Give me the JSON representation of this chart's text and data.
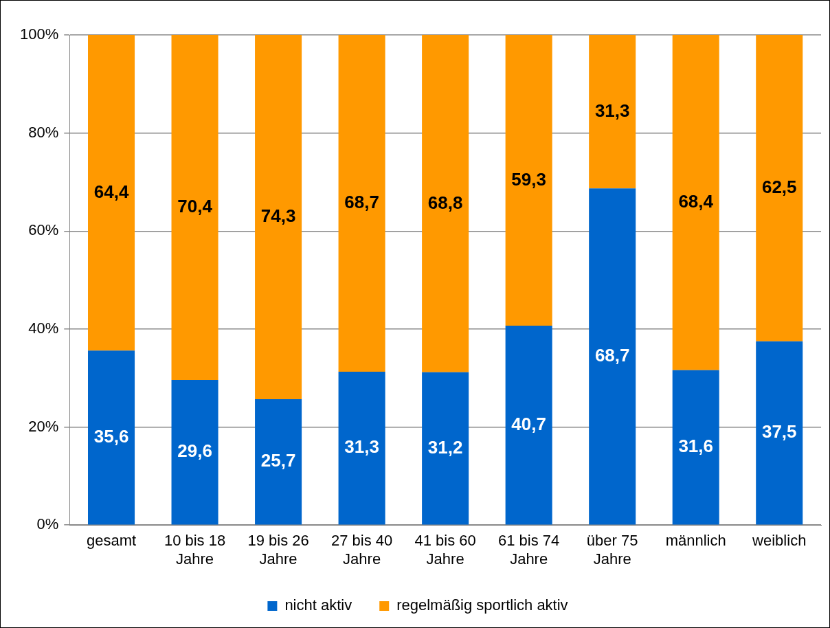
{
  "chart_data": {
    "type": "bar",
    "stacked": true,
    "categories": [
      "gesamt",
      "10 bis 18 Jahre",
      "19 bis 26 Jahre",
      "27 bis 40 Jahre",
      "41 bis 60 Jahre",
      "61 bis 74 Jahre",
      "über 75 Jahre",
      "männlich",
      "weiblich"
    ],
    "series": [
      {
        "name": "nicht aktiv",
        "color": "#0066cc",
        "values": [
          35.6,
          29.6,
          25.7,
          31.3,
          31.2,
          40.7,
          68.7,
          31.6,
          37.5
        ],
        "value_labels": [
          "35,6",
          "29,6",
          "25,7",
          "31,3",
          "31,2",
          "40,7",
          "68,7",
          "31,6",
          "37,5"
        ]
      },
      {
        "name": "regelmäßig sportlich aktiv",
        "color": "#ff9900",
        "values": [
          64.4,
          70.4,
          74.3,
          68.7,
          68.8,
          59.3,
          31.3,
          68.4,
          62.5
        ],
        "value_labels": [
          "64,4",
          "70,4",
          "74,3",
          "68,7",
          "68,8",
          "59,3",
          "31,3",
          "68,4",
          "62,5"
        ]
      }
    ],
    "ylim": [
      0,
      100
    ],
    "yticks": [
      {
        "value": 0,
        "label": "0%"
      },
      {
        "value": 20,
        "label": "20%"
      },
      {
        "value": 40,
        "label": "40%"
      },
      {
        "value": 60,
        "label": "60%"
      },
      {
        "value": 80,
        "label": "80%"
      },
      {
        "value": 100,
        "label": "100%"
      }
    ],
    "grid": "y",
    "legend": "bottom"
  }
}
